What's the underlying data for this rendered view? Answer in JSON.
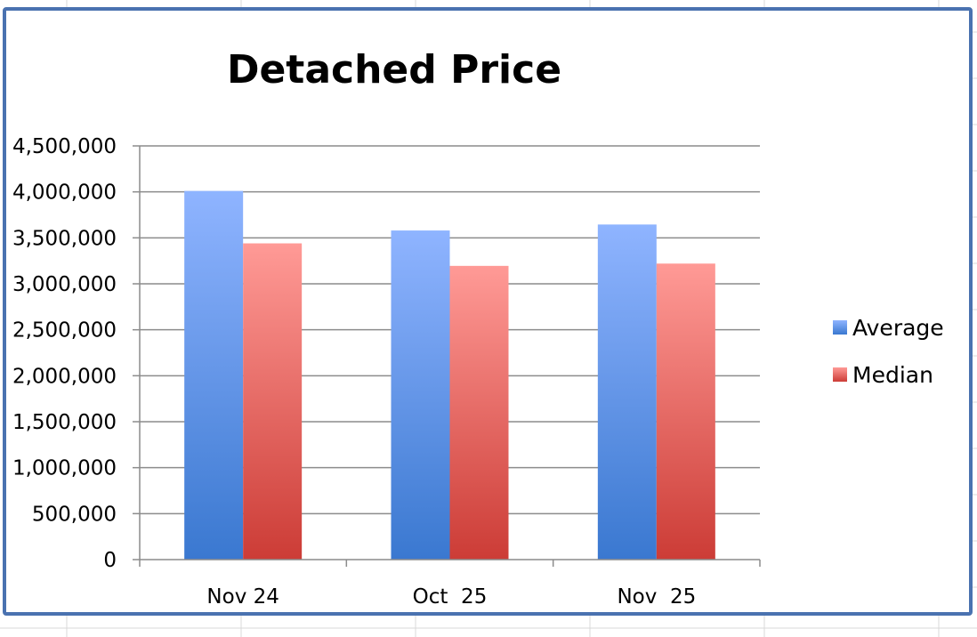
{
  "chart_data": {
    "type": "bar",
    "title": "Detached Price",
    "categories": [
      "Nov 24",
      "Oct  25",
      "Nov  25"
    ],
    "series": [
      {
        "name": "Average",
        "values": [
          4010000,
          3580000,
          3645000
        ]
      },
      {
        "name": "Median",
        "values": [
          3440000,
          3195000,
          3220000
        ]
      }
    ],
    "ylim": [
      0,
      4500000
    ],
    "yticks": [
      0,
      500000,
      1000000,
      1500000,
      2000000,
      2500000,
      3000000,
      3500000,
      4000000,
      4500000
    ],
    "ytick_labels": [
      "0",
      "500,000",
      "1,000,000",
      "1,500,000",
      "2,000,000",
      "2,500,000",
      "3,000,000",
      "3,500,000",
      "4,000,000",
      "4,500,000"
    ],
    "grid": true,
    "legend_position": "right",
    "colors": {
      "Average": {
        "top": "#8fb4ff",
        "bottom": "#3a78d0"
      },
      "Median": {
        "top": "#ff9a96",
        "bottom": "#cc3c36"
      },
      "frame": "#4a72b0",
      "gridline": "#8c8c8c",
      "sheet_grid": "#d9d9d9"
    }
  }
}
